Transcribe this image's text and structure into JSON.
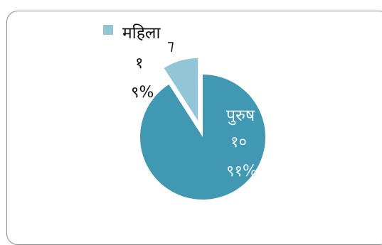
{
  "chart_data": {
    "type": "pie",
    "title": "",
    "slices": [
      {
        "category": "पुरुष",
        "value": 10,
        "percent_label": "९१%",
        "value_label": "१०",
        "color": "#4198b2",
        "exploded": false
      },
      {
        "category": "महिला",
        "value": 1,
        "percent_label": "९%",
        "value_label": "१",
        "color": "#92c6d7",
        "exploded": true
      }
    ],
    "label_color_inside": "#e8f3f7",
    "label_color_outside": "#111111",
    "legend": {
      "placement": "top-left",
      "entries": [
        "महिला"
      ]
    }
  }
}
